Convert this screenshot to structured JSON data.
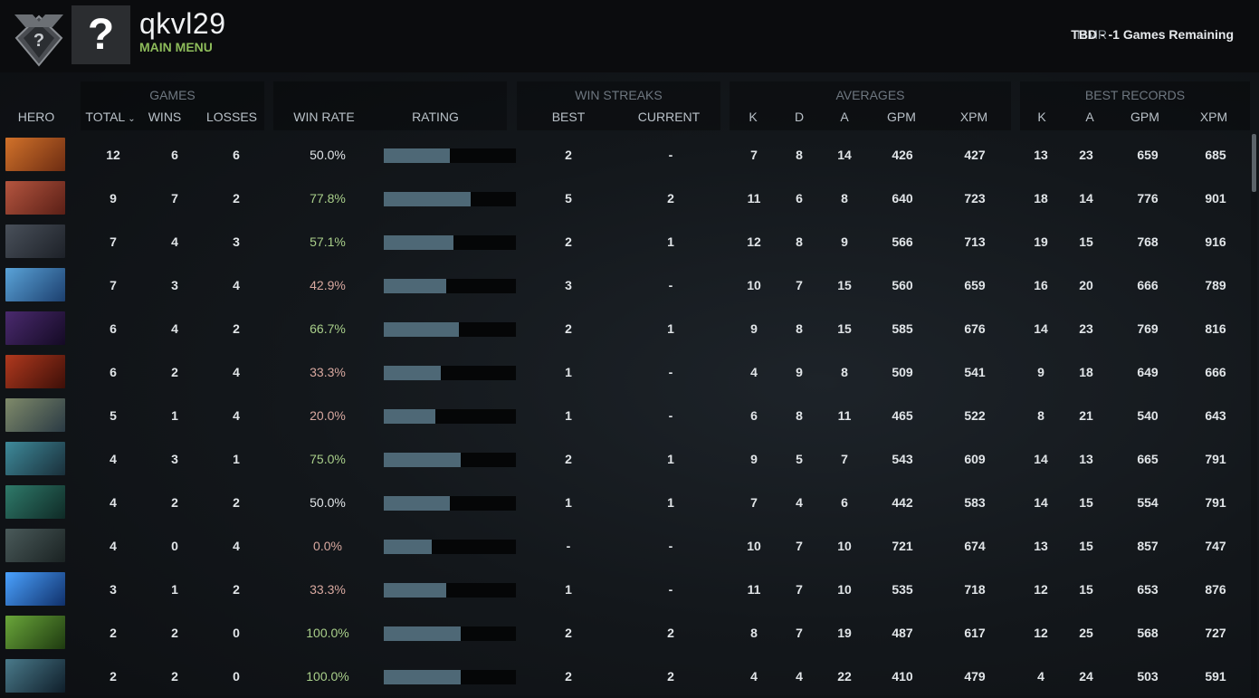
{
  "header": {
    "rank_icon": "question-rank-badge-icon",
    "avatar_icon": "question-mark-avatar-icon",
    "avatar_glyph": "?",
    "username": "qkvl29",
    "main_menu_label": "MAIN MENU",
    "mmr_label": "MMR",
    "mmr_value": "TBD - -1 Games Remaining"
  },
  "groups": {
    "games": "GAMES",
    "win_streaks": "WIN STREAKS",
    "averages": "AVERAGES",
    "best_records": "BEST RECORDS"
  },
  "columns": {
    "hero": "HERO",
    "total": "TOTAL",
    "wins": "WINS",
    "losses": "LOSSES",
    "win_rate": "WIN RATE",
    "rating": "RATING",
    "best": "BEST",
    "current": "CURRENT",
    "avg_k": "K",
    "avg_d": "D",
    "avg_a": "A",
    "avg_gpm": "GPM",
    "avg_xpm": "XPM",
    "best_k": "K",
    "best_a": "A",
    "best_gpm": "GPM",
    "best_xpm": "XPM"
  },
  "colors": {
    "win_rate_good": "#a9cf8a",
    "win_rate_bad": "#d9a9a0",
    "win_rate_even": "#e1e5e8",
    "rating_bar": "#4e6876"
  },
  "rows": [
    {
      "hero_icon": "hero-portrait-1-icon",
      "c1": "#d1722a",
      "c2": "#6d2c12",
      "total": "12",
      "wins": "6",
      "losses": "6",
      "win_rate": "50.0%",
      "tone": "even",
      "rating": 0.5,
      "best": "2",
      "current": "-",
      "k": "7",
      "d": "8",
      "a": "14",
      "gpm": "426",
      "xpm": "427",
      "bk": "13",
      "ba": "23",
      "bgpm": "659",
      "bxpm": "685"
    },
    {
      "hero_icon": "hero-portrait-2-icon",
      "c1": "#b4553f",
      "c2": "#5a1f16",
      "total": "9",
      "wins": "7",
      "losses": "2",
      "win_rate": "77.8%",
      "tone": "good",
      "rating": 0.66,
      "best": "5",
      "current": "2",
      "k": "11",
      "d": "6",
      "a": "8",
      "gpm": "640",
      "xpm": "723",
      "bk": "18",
      "ba": "14",
      "bgpm": "776",
      "bxpm": "901"
    },
    {
      "hero_icon": "hero-portrait-3-icon",
      "c1": "#49505a",
      "c2": "#1d2128",
      "total": "7",
      "wins": "4",
      "losses": "3",
      "win_rate": "57.1%",
      "tone": "good",
      "rating": 0.53,
      "best": "2",
      "current": "1",
      "k": "12",
      "d": "8",
      "a": "9",
      "gpm": "566",
      "xpm": "713",
      "bk": "19",
      "ba": "15",
      "bgpm": "768",
      "bxpm": "916"
    },
    {
      "hero_icon": "hero-portrait-4-icon",
      "c1": "#5aa3d8",
      "c2": "#1c3f6e",
      "total": "7",
      "wins": "3",
      "losses": "4",
      "win_rate": "42.9%",
      "tone": "bad",
      "rating": 0.47,
      "best": "3",
      "current": "-",
      "k": "10",
      "d": "7",
      "a": "15",
      "gpm": "560",
      "xpm": "659",
      "bk": "16",
      "ba": "20",
      "bgpm": "666",
      "bxpm": "789"
    },
    {
      "hero_icon": "hero-portrait-5-icon",
      "c1": "#4a2a6e",
      "c2": "#140a24",
      "total": "6",
      "wins": "4",
      "losses": "2",
      "win_rate": "66.7%",
      "tone": "good",
      "rating": 0.57,
      "best": "2",
      "current": "1",
      "k": "9",
      "d": "8",
      "a": "15",
      "gpm": "585",
      "xpm": "676",
      "bk": "14",
      "ba": "23",
      "bgpm": "769",
      "bxpm": "816"
    },
    {
      "hero_icon": "hero-portrait-6-icon",
      "c1": "#b0391e",
      "c2": "#3d0f08",
      "total": "6",
      "wins": "2",
      "losses": "4",
      "win_rate": "33.3%",
      "tone": "bad",
      "rating": 0.43,
      "best": "1",
      "current": "-",
      "k": "4",
      "d": "9",
      "a": "8",
      "gpm": "509",
      "xpm": "541",
      "bk": "9",
      "ba": "18",
      "bgpm": "649",
      "bxpm": "666"
    },
    {
      "hero_icon": "hero-portrait-7-icon",
      "c1": "#7f8a6a",
      "c2": "#2a3a44",
      "total": "5",
      "wins": "1",
      "losses": "4",
      "win_rate": "20.0%",
      "tone": "bad",
      "rating": 0.39,
      "best": "1",
      "current": "-",
      "k": "6",
      "d": "8",
      "a": "11",
      "gpm": "465",
      "xpm": "522",
      "bk": "8",
      "ba": "21",
      "bgpm": "540",
      "bxpm": "643"
    },
    {
      "hero_icon": "hero-portrait-8-icon",
      "c1": "#3e8a9a",
      "c2": "#1a2f3a",
      "total": "4",
      "wins": "3",
      "losses": "1",
      "win_rate": "75.0%",
      "tone": "good",
      "rating": 0.58,
      "best": "2",
      "current": "1",
      "k": "9",
      "d": "5",
      "a": "7",
      "gpm": "543",
      "xpm": "609",
      "bk": "14",
      "ba": "13",
      "bgpm": "665",
      "bxpm": "791"
    },
    {
      "hero_icon": "hero-portrait-9-icon",
      "c1": "#2f7a6a",
      "c2": "#0f2a26",
      "total": "4",
      "wins": "2",
      "losses": "2",
      "win_rate": "50.0%",
      "tone": "even",
      "rating": 0.5,
      "best": "1",
      "current": "1",
      "k": "7",
      "d": "4",
      "a": "6",
      "gpm": "442",
      "xpm": "583",
      "bk": "14",
      "ba": "15",
      "bgpm": "554",
      "bxpm": "791"
    },
    {
      "hero_icon": "hero-portrait-10-icon",
      "c1": "#4a5a5a",
      "c2": "#1a2222",
      "total": "4",
      "wins": "0",
      "losses": "4",
      "win_rate": "0.0%",
      "tone": "bad",
      "rating": 0.36,
      "best": "-",
      "current": "-",
      "k": "10",
      "d": "7",
      "a": "10",
      "gpm": "721",
      "xpm": "674",
      "bk": "13",
      "ba": "15",
      "bgpm": "857",
      "bxpm": "747"
    },
    {
      "hero_icon": "hero-portrait-11-icon",
      "c1": "#4aa2ff",
      "c2": "#10306a",
      "total": "3",
      "wins": "1",
      "losses": "2",
      "win_rate": "33.3%",
      "tone": "bad",
      "rating": 0.47,
      "best": "1",
      "current": "-",
      "k": "11",
      "d": "7",
      "a": "10",
      "gpm": "535",
      "xpm": "718",
      "bk": "12",
      "ba": "15",
      "bgpm": "653",
      "bxpm": "876"
    },
    {
      "hero_icon": "hero-portrait-12-icon",
      "c1": "#6aa63a",
      "c2": "#1e3a10",
      "total": "2",
      "wins": "2",
      "losses": "0",
      "win_rate": "100.0%",
      "tone": "good",
      "rating": 0.58,
      "best": "2",
      "current": "2",
      "k": "8",
      "d": "7",
      "a": "19",
      "gpm": "487",
      "xpm": "617",
      "bk": "12",
      "ba": "25",
      "bgpm": "568",
      "bxpm": "727"
    },
    {
      "hero_icon": "hero-portrait-13-icon",
      "c1": "#4a7a8a",
      "c2": "#0f1e2a",
      "total": "2",
      "wins": "2",
      "losses": "0",
      "win_rate": "100.0%",
      "tone": "good",
      "rating": 0.58,
      "best": "2",
      "current": "2",
      "k": "4",
      "d": "4",
      "a": "22",
      "gpm": "410",
      "xpm": "479",
      "bk": "4",
      "ba": "24",
      "bgpm": "503",
      "bxpm": "591"
    }
  ]
}
